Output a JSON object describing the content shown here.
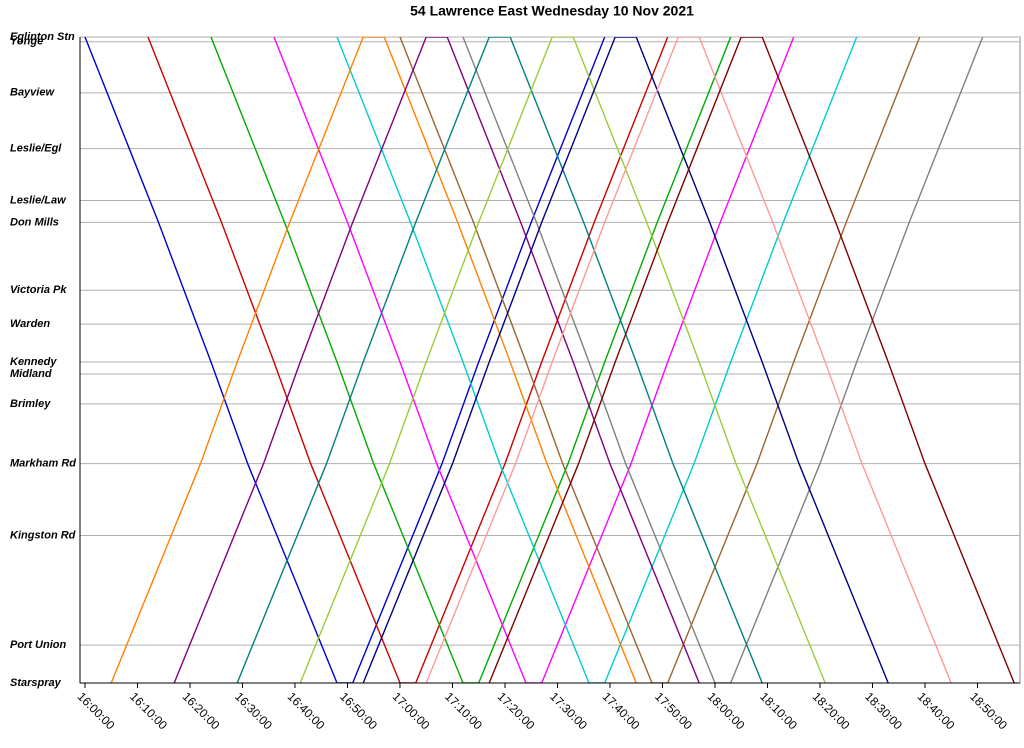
{
  "chart_data": {
    "type": "line",
    "title": "54 Lawrence East Wednesday 10 Nov 2021",
    "xlim": [
      "15:59:03",
      "18:58:06"
    ],
    "xticks": [
      "16:00:00",
      "16:10:00",
      "16:20:00",
      "16:30:00",
      "16:40:00",
      "16:50:00",
      "17:00:00",
      "17:10:00",
      "17:20:00",
      "17:30:00",
      "17:40:00",
      "17:50:00",
      "18:00:00",
      "18:10:00",
      "18:20:00",
      "18:30:00",
      "18:40:00",
      "18:50:00"
    ],
    "ylim": [
      0,
      16.2
    ],
    "yreverse": true,
    "grid": true,
    "yticks": [
      {
        "value": 0,
        "label": "Eglinton Stn"
      },
      {
        "value": 0.12,
        "label": "Yonge"
      },
      {
        "value": 1.4,
        "label": "Bayview"
      },
      {
        "value": 2.8,
        "label": "Leslie/Egl"
      },
      {
        "value": 4.1,
        "label": "Leslie/Law"
      },
      {
        "value": 4.65,
        "label": "Don Mills"
      },
      {
        "value": 6.35,
        "label": "Victoria Pk"
      },
      {
        "value": 7.2,
        "label": "Warden"
      },
      {
        "value": 8.15,
        "label": "Kennedy"
      },
      {
        "value": 8.45,
        "label": "Midland"
      },
      {
        "value": 9.2,
        "label": "Brimley"
      },
      {
        "value": 10.7,
        "label": "Markham Rd"
      },
      {
        "value": 12.5,
        "label": "Kingston Rd"
      },
      {
        "value": 15.25,
        "label": "Port Union"
      },
      {
        "value": 16.2,
        "label": "Starspray"
      }
    ],
    "series": [
      {
        "color": "#0000cc",
        "x": [
          "16:00:00",
          "16:14:00",
          "16:24:00",
          "16:31:00",
          "16:48:00",
          "16:51:00",
          "17:08:00",
          "17:15:00",
          "17:25:00",
          "17:39:00"
        ],
        "values": [
          0,
          4.65,
          8.15,
          10.7,
          16.2,
          16.2,
          10.7,
          8.15,
          4.65,
          0
        ]
      },
      {
        "color": "#cc0000",
        "x": [
          "16:12:00",
          "16:26:00",
          "16:36:00",
          "16:43:00",
          "17:00:00",
          "17:03:00",
          "17:20:00",
          "17:27:00",
          "17:37:00",
          "17:51:00"
        ],
        "values": [
          0,
          4.65,
          8.15,
          10.7,
          16.2,
          16.2,
          10.7,
          8.15,
          4.65,
          0
        ]
      },
      {
        "color": "#00aa00",
        "x": [
          "16:24:00",
          "16:38:00",
          "16:48:00",
          "16:55:00",
          "17:12:00",
          "17:15:00",
          "17:32:00",
          "17:39:00",
          "17:49:00",
          "18:03:00"
        ],
        "values": [
          0,
          4.65,
          8.15,
          10.7,
          16.2,
          16.2,
          10.7,
          8.15,
          4.65,
          0
        ]
      },
      {
        "color": "#ff00ff",
        "x": [
          "16:36:00",
          "16:50:00",
          "17:00:00",
          "17:07:00",
          "17:24:00",
          "17:27:00",
          "17:44:00",
          "17:51:00",
          "18:01:00",
          "18:15:00"
        ],
        "values": [
          0,
          4.65,
          8.15,
          10.7,
          16.2,
          16.2,
          10.7,
          8.15,
          4.65,
          0
        ]
      },
      {
        "color": "#00cccc",
        "x": [
          "16:48:00",
          "17:02:00",
          "17:12:00",
          "17:19:00",
          "17:36:00",
          "17:39:00",
          "17:56:00",
          "18:03:00",
          "18:13:00",
          "18:27:00"
        ],
        "values": [
          0,
          4.65,
          8.15,
          10.7,
          16.2,
          16.2,
          10.7,
          8.15,
          4.65,
          0
        ]
      },
      {
        "color": "#996633",
        "x": [
          "17:00:00",
          "17:14:00",
          "17:24:00",
          "17:31:00",
          "17:48:00",
          "17:51:00",
          "18:08:00",
          "18:15:00",
          "18:25:00",
          "18:39:00"
        ],
        "values": [
          0,
          4.65,
          8.15,
          10.7,
          16.2,
          16.2,
          10.7,
          8.15,
          4.65,
          0
        ]
      },
      {
        "color": "#808080",
        "x": [
          "17:12:00",
          "17:26:00",
          "17:36:00",
          "17:43:00",
          "18:00:00",
          "18:03:00",
          "18:20:00",
          "18:27:00",
          "18:37:00",
          "18:51:00"
        ],
        "values": [
          0,
          4.65,
          8.15,
          10.7,
          16.2,
          16.2,
          10.7,
          8.15,
          4.65,
          0
        ]
      },
      {
        "color": "#ff8000",
        "x": [
          "16:05:00",
          "16:22:00",
          "16:29:00",
          "16:39:00",
          "16:53:00",
          "16:57:00",
          "17:11:00",
          "17:21:00",
          "17:28:00",
          "17:45:00"
        ],
        "values": [
          16.2,
          10.7,
          8.15,
          4.65,
          0,
          0,
          4.65,
          8.15,
          10.7,
          16.2
        ]
      },
      {
        "color": "#800080",
        "x": [
          "16:17:00",
          "16:34:00",
          "16:41:00",
          "16:51:00",
          "17:05:00",
          "17:09:00",
          "17:23:00",
          "17:33:00",
          "17:40:00",
          "17:57:00"
        ],
        "values": [
          16.2,
          10.7,
          8.15,
          4.65,
          0,
          0,
          4.65,
          8.15,
          10.7,
          16.2
        ]
      },
      {
        "color": "#008080",
        "x": [
          "16:29:00",
          "16:46:00",
          "16:53:00",
          "17:03:00",
          "17:17:00",
          "17:21:00",
          "17:35:00",
          "17:45:00",
          "17:52:00",
          "18:09:00"
        ],
        "values": [
          16.2,
          10.7,
          8.15,
          4.65,
          0,
          0,
          4.65,
          8.15,
          10.7,
          16.2
        ]
      },
      {
        "color": "#99cc33",
        "x": [
          "16:41:00",
          "16:58:00",
          "17:05:00",
          "17:15:00",
          "17:29:00",
          "17:33:00",
          "17:47:00",
          "17:57:00",
          "18:04:00",
          "18:21:00"
        ],
        "values": [
          16.2,
          10.7,
          8.15,
          4.65,
          0,
          0,
          4.65,
          8.15,
          10.7,
          16.2
        ]
      },
      {
        "color": "#000080",
        "x": [
          "16:53:00",
          "17:10:00",
          "17:17:00",
          "17:27:00",
          "17:41:00",
          "17:45:00",
          "17:59:00",
          "18:09:00",
          "18:16:00",
          "18:33:00"
        ],
        "values": [
          16.2,
          10.7,
          8.15,
          4.65,
          0,
          0,
          4.65,
          8.15,
          10.7,
          16.2
        ]
      },
      {
        "color": "#ff9999",
        "x": [
          "17:05:00",
          "17:22:00",
          "17:29:00",
          "17:39:00",
          "17:53:00",
          "17:57:00",
          "18:11:00",
          "18:21:00",
          "18:28:00",
          "18:45:00"
        ],
        "values": [
          16.2,
          10.7,
          8.15,
          4.65,
          0,
          0,
          4.65,
          8.15,
          10.7,
          16.2
        ]
      },
      {
        "color": "#800000",
        "x": [
          "17:17:00",
          "17:34:00",
          "17:41:00",
          "17:51:00",
          "18:05:00",
          "18:09:00",
          "18:23:00",
          "18:33:00",
          "18:40:00",
          "18:57:00"
        ],
        "values": [
          16.2,
          10.7,
          8.15,
          4.65,
          0,
          0,
          4.65,
          8.15,
          10.7,
          16.2
        ]
      }
    ]
  }
}
